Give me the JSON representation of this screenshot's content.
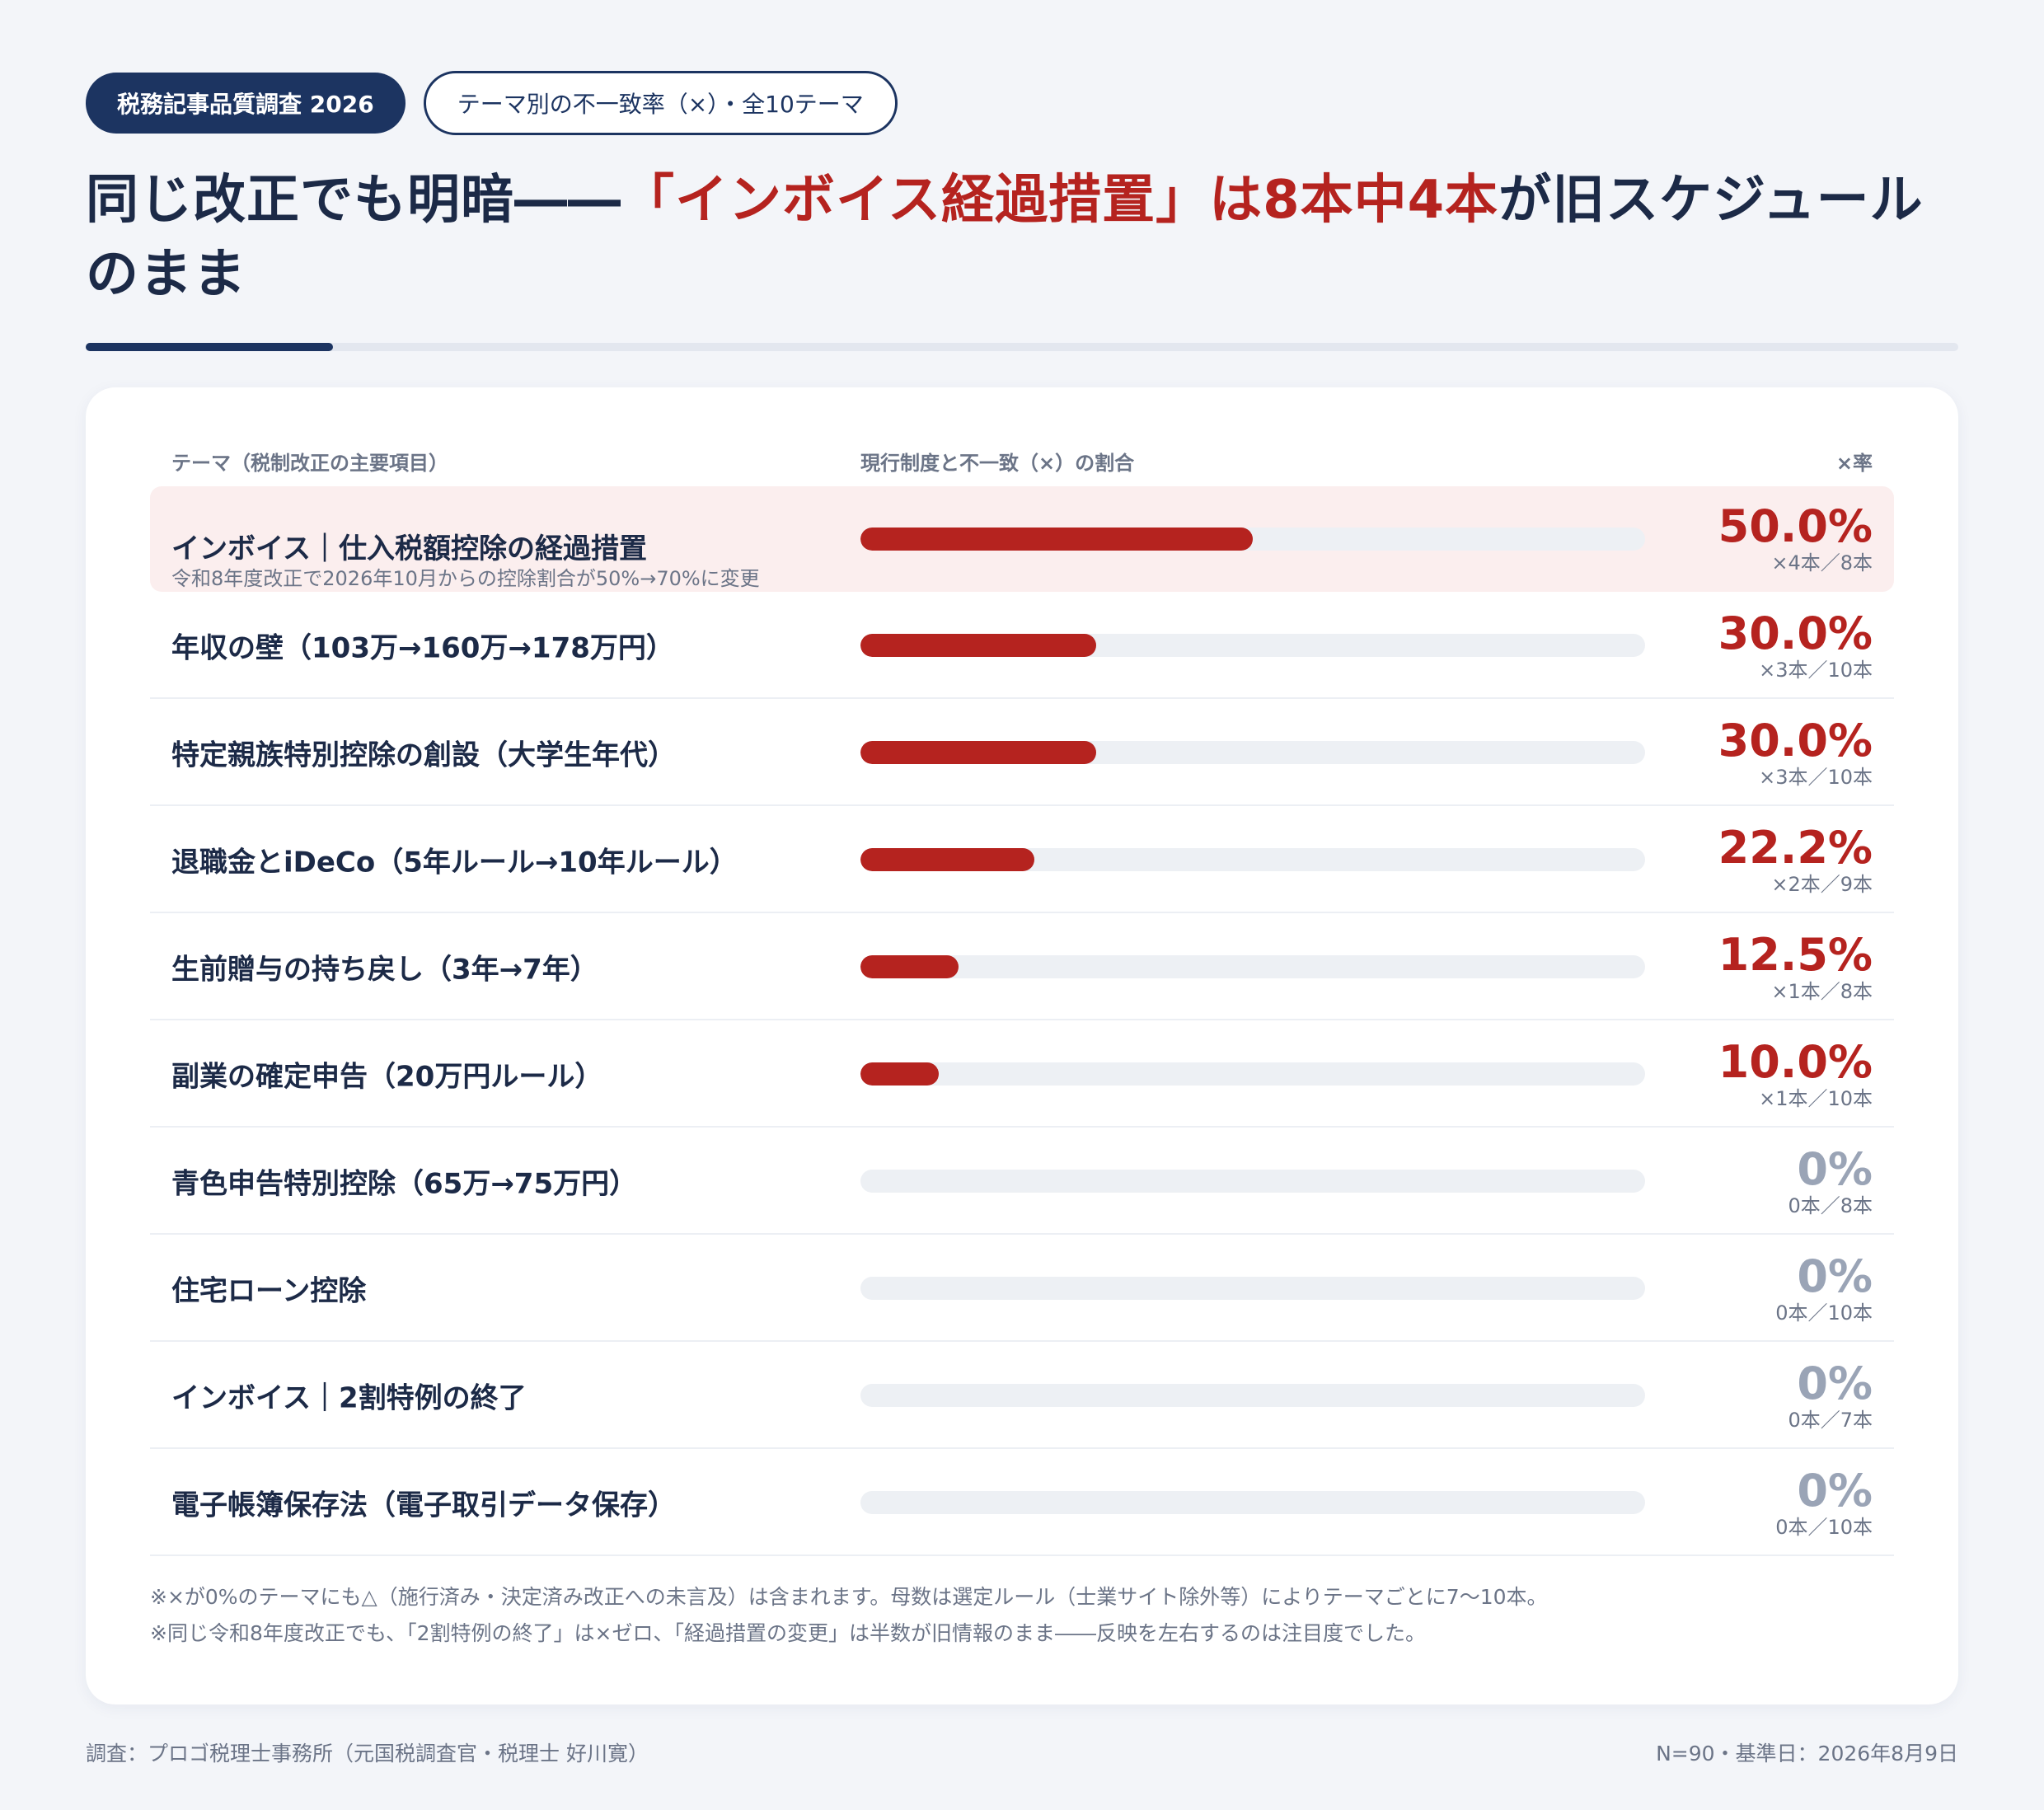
{
  "header": {
    "tag_primary": "税務記事品質調査 2026",
    "tag_secondary": "テーマ別の不一致率（×）・全10テーマ",
    "headline_part1": "同じ改正でも明暗――",
    "headline_part2": "「インボイス経過措置」は8本中4本",
    "headline_part3": "が旧スケジュールのまま"
  },
  "colors": {
    "accent": "#b5231f",
    "navy": "#1c3461",
    "zero": "#9aa4b6",
    "track": "#edf0f4"
  },
  "chart_data": {
    "type": "bar",
    "orientation": "horizontal",
    "column_headers": {
      "theme": "テーマ（税制改正の主要項目）",
      "bar": "現行制度と不一致（×）の割合",
      "rate": "×率"
    },
    "xlim": [
      0,
      100
    ],
    "rows": [
      {
        "label": "インボイス｜仕入税額控除の経過措置",
        "sublabel": "令和8年度改正で2026年10月からの控除割合が50%→70%に変更",
        "value": 50.0,
        "pct_label": "50.0%",
        "count_label": "×4本／8本",
        "highlight": true
      },
      {
        "label": "年収の壁（103万→160万→178万円）",
        "value": 30.0,
        "pct_label": "30.0%",
        "count_label": "×3本／10本"
      },
      {
        "label": "特定親族特別控除の創設（大学生年代）",
        "value": 30.0,
        "pct_label": "30.0%",
        "count_label": "×3本／10本"
      },
      {
        "label": "退職金とiDeCo（5年ルール→10年ルール）",
        "value": 22.2,
        "pct_label": "22.2%",
        "count_label": "×2本／9本"
      },
      {
        "label": "生前贈与の持ち戻し（3年→7年）",
        "value": 12.5,
        "pct_label": "12.5%",
        "count_label": "×1本／8本"
      },
      {
        "label": "副業の確定申告（20万円ルール）",
        "value": 10.0,
        "pct_label": "10.0%",
        "count_label": "×1本／10本"
      },
      {
        "label": "青色申告特別控除（65万→75万円）",
        "value": 0,
        "pct_label": "0%",
        "count_label": "0本／8本"
      },
      {
        "label": "住宅ローン控除",
        "value": 0,
        "pct_label": "0%",
        "count_label": "0本／10本"
      },
      {
        "label": "インボイス｜2割特例の終了",
        "value": 0,
        "pct_label": "0%",
        "count_label": "0本／7本"
      },
      {
        "label": "電子帳簿保存法（電子取引データ保存）",
        "value": 0,
        "pct_label": "0%",
        "count_label": "0本／10本"
      }
    ]
  },
  "notes": [
    "※×が0%のテーマにも△（施行済み・決定済み改正への未言及）は含まれます。母数は選定ルール（士業サイト除外等）によりテーマごとに7〜10本。",
    "※同じ令和8年度改正でも、「2割特例の終了」は×ゼロ、「経過措置の変更」は半数が旧情報のまま――反映を左右するのは注目度でした。"
  ],
  "footer": {
    "source": "調査：プロゴ税理士事務所（元国税調査官・税理士 好川寛）",
    "meta": "N=90・基準日：2026年8月9日"
  }
}
